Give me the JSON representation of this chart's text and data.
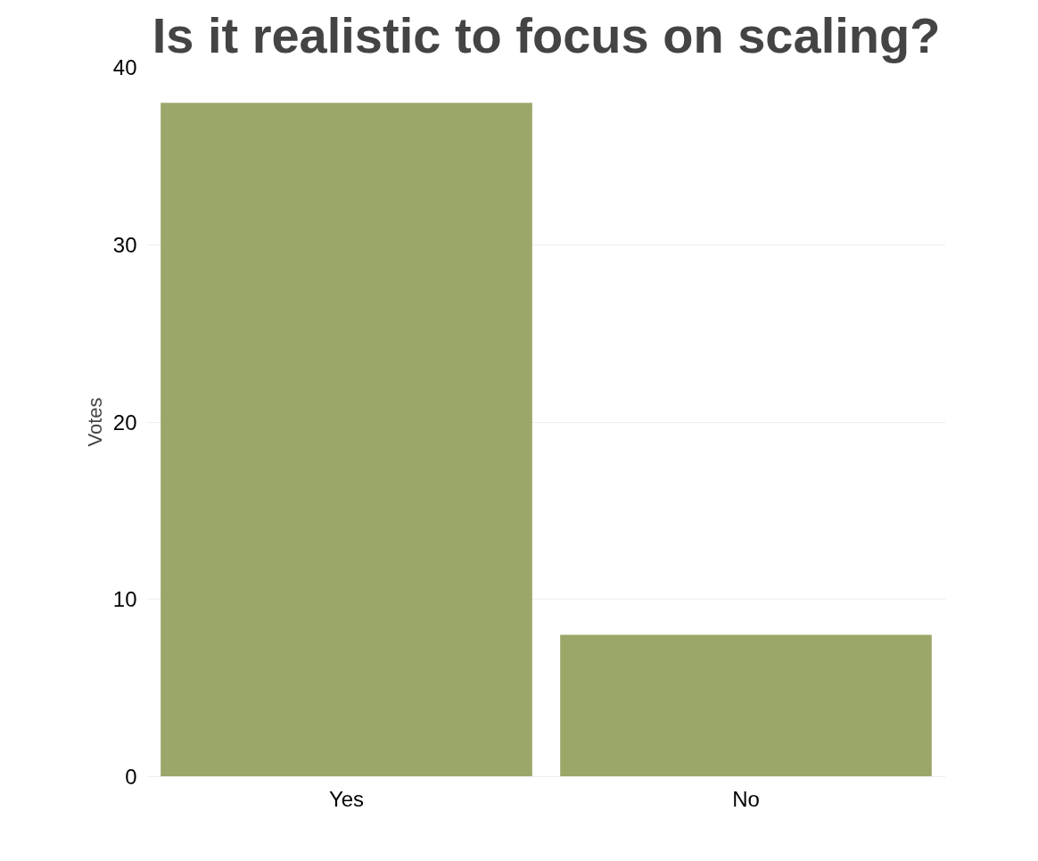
{
  "chart_data": {
    "type": "bar",
    "title": "Is it realistic to focus on scaling?",
    "ylabel": "Votes",
    "categories": [
      "Yes",
      "No"
    ],
    "values": [
      38,
      8
    ],
    "color": "#9aa769",
    "ylim": [
      0,
      40
    ],
    "yticks": [
      0,
      10,
      20,
      30,
      40
    ],
    "grid": "y"
  }
}
